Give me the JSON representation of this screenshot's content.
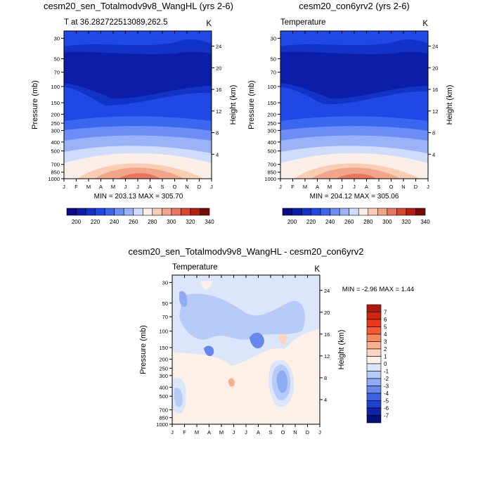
{
  "chart_data": [
    {
      "type": "heatmap",
      "title": "cesm20_sen_Totalmodv9v8_WangHL (yrs 2-6)",
      "subtitle_left": "T at 36.282722513089,262.5",
      "subtitle_right": "K",
      "ylabel": "Pressure (mb)",
      "y2label": "Height (km)",
      "x_ticks": [
        "J",
        "F",
        "M",
        "A",
        "M",
        "J",
        "J",
        "A",
        "S",
        "O",
        "N",
        "D",
        "J"
      ],
      "y_ticks": [
        "30",
        "50",
        "70",
        "100",
        "150",
        "200",
        "250",
        "300",
        "400",
        "500",
        "700",
        "850",
        "1000"
      ],
      "y2_ticks": [
        "24",
        "20",
        "16",
        "12",
        "8",
        "4"
      ],
      "stats": "MIN = 203.13 MAX = 305.70",
      "levels": [
        200,
        220,
        240,
        260,
        280,
        300,
        320,
        340
      ],
      "vmin": 203.13,
      "vmax": 305.7
    },
    {
      "type": "heatmap",
      "title": "cesm20_con6yrv2 (yrs 2-6)",
      "subtitle_left": "Temperature",
      "subtitle_right": "K",
      "ylabel": "Pressure (mb)",
      "y2label": "Height (km)",
      "x_ticks": [
        "J",
        "F",
        "M",
        "A",
        "M",
        "J",
        "J",
        "A",
        "S",
        "O",
        "N",
        "D",
        "J"
      ],
      "y_ticks": [
        "30",
        "50",
        "70",
        "100",
        "150",
        "200",
        "250",
        "300",
        "400",
        "500",
        "700",
        "850",
        "1000"
      ],
      "y2_ticks": [
        "24",
        "20",
        "16",
        "12",
        "8",
        "4"
      ],
      "stats": "MIN = 204.12 MAX = 305.06",
      "levels": [
        200,
        220,
        240,
        260,
        280,
        300,
        320,
        340
      ],
      "vmin": 204.12,
      "vmax": 305.06
    },
    {
      "type": "heatmap",
      "title": "cesm20_sen_Totalmodv9v8_WangHL - cesm20_con6yrv2",
      "subtitle_left": "Temperature",
      "subtitle_right": "K",
      "ylabel": "Pressure (mb)",
      "y2label": "Height (km)",
      "x_ticks": [
        "J",
        "F",
        "M",
        "A",
        "M",
        "J",
        "J",
        "A",
        "S",
        "O",
        "N",
        "D",
        "J"
      ],
      "y_ticks": [
        "30",
        "50",
        "70",
        "100",
        "150",
        "200",
        "250",
        "300",
        "400",
        "500",
        "700",
        "850",
        "1000"
      ],
      "y2_ticks": [
        "24",
        "20",
        "16",
        "12",
        "8",
        "4"
      ],
      "stats": "MIN =  -2.96 MAX =   1.44",
      "levels": [
        7,
        6,
        5,
        4,
        3,
        2,
        1,
        0,
        -1,
        -2,
        -3,
        -4,
        -5,
        -6,
        -7
      ],
      "vmin": -2.96,
      "vmax": 1.44
    }
  ],
  "colors": {
    "temp_scale": [
      "#0a0a8c",
      "#0c1ea8",
      "#1233c8",
      "#1f48e6",
      "#3a66f0",
      "#6c8df5",
      "#9bb2f8",
      "#cfdcfb",
      "#fbeee6",
      "#f9cdb4",
      "#f3a58a",
      "#e97660",
      "#d8482f",
      "#b41e10",
      "#7a0a05"
    ],
    "diff_scale": [
      "#b01808",
      "#d3260f",
      "#ea3818",
      "#f45a30",
      "#f7875e",
      "#f9b090",
      "#fbd5bf",
      "#fdf0e6",
      "#dbe6fb",
      "#b6cbf8",
      "#8eabf3",
      "#6688ee",
      "#3a63e6",
      "#1f3fd0",
      "#0f23a8",
      "#050f7a"
    ]
  }
}
